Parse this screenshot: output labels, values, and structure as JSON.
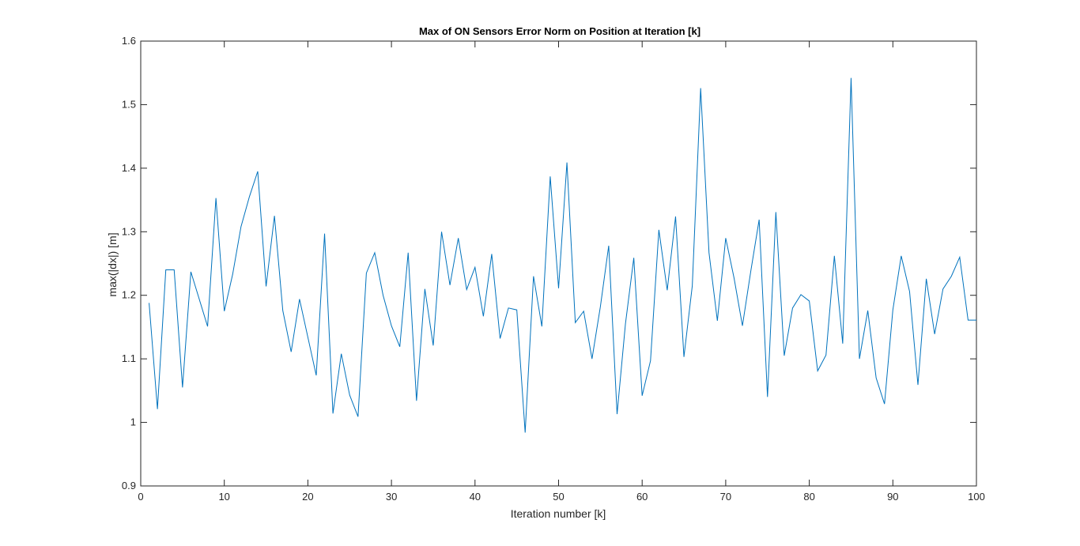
{
  "chart_data": {
    "type": "line",
    "title": "Max of ON Sensors Error Norm on Position at Iteration [k]",
    "xlabel": "Iteration number [k]",
    "ylabel": "max(|dx|) [m]",
    "xlim": [
      0,
      100
    ],
    "ylim": [
      0.9,
      1.6
    ],
    "xticks": [
      0,
      10,
      20,
      30,
      40,
      50,
      60,
      70,
      80,
      90,
      100
    ],
    "yticks": [
      0.9,
      1,
      1.1,
      1.2,
      1.3,
      1.4,
      1.5,
      1.6
    ],
    "xtick_labels": [
      "0",
      "10",
      "20",
      "30",
      "40",
      "50",
      "60",
      "70",
      "80",
      "90",
      "100"
    ],
    "ytick_labels": [
      "0.9",
      "1",
      "1.1",
      "1.2",
      "1.3",
      "1.4",
      "1.5",
      "1.6"
    ],
    "grid": false,
    "line_color": "#0072BD",
    "series": [
      {
        "x": [
          1,
          2,
          3,
          4,
          5,
          6,
          7,
          8,
          9,
          10,
          11,
          12,
          13,
          14,
          15,
          16,
          17,
          18,
          19,
          20,
          21,
          22,
          23,
          24,
          25,
          26,
          27,
          28,
          29,
          30,
          31,
          32,
          33,
          34,
          35,
          36,
          37,
          38,
          39,
          40,
          41,
          42,
          43,
          44,
          45,
          46,
          47,
          48,
          49,
          50,
          51,
          52,
          53,
          54,
          55,
          56,
          57,
          58,
          59,
          60,
          61,
          62,
          63,
          64,
          65,
          66,
          67,
          68,
          69,
          70,
          71,
          72,
          73,
          74,
          75,
          76,
          77,
          78,
          79,
          80,
          81,
          82,
          83,
          84,
          85,
          86,
          87,
          88,
          89,
          90,
          91,
          92,
          93,
          94,
          95,
          96,
          97,
          98,
          99,
          100
        ],
        "values": [
          1.188,
          1.021,
          1.24,
          1.24,
          1.055,
          1.237,
          1.194,
          1.151,
          1.353,
          1.175,
          1.233,
          1.308,
          1.355,
          1.395,
          1.214,
          1.325,
          1.176,
          1.111,
          1.194,
          1.134,
          1.074,
          1.297,
          1.014,
          1.108,
          1.043,
          1.009,
          1.235,
          1.267,
          1.2,
          1.152,
          1.119,
          1.267,
          1.034,
          1.21,
          1.121,
          1.3,
          1.216,
          1.29,
          1.209,
          1.244,
          1.167,
          1.265,
          1.132,
          1.18,
          1.177,
          0.984,
          1.23,
          1.151,
          1.387,
          1.211,
          1.409,
          1.157,
          1.175,
          1.1,
          1.182,
          1.278,
          1.013,
          1.155,
          1.259,
          1.042,
          1.097,
          1.303,
          1.208,
          1.324,
          1.103,
          1.215,
          1.526,
          1.267,
          1.16,
          1.29,
          1.227,
          1.152,
          1.238,
          1.319,
          1.04,
          1.331,
          1.105,
          1.18,
          1.201,
          1.191,
          1.081,
          1.106,
          1.262,
          1.124,
          1.542,
          1.1,
          1.176,
          1.07,
          1.029,
          1.177,
          1.262,
          1.206,
          1.059,
          1.226,
          1.139,
          1.21,
          1.23,
          1.26,
          1.161,
          1.161
        ]
      }
    ]
  }
}
